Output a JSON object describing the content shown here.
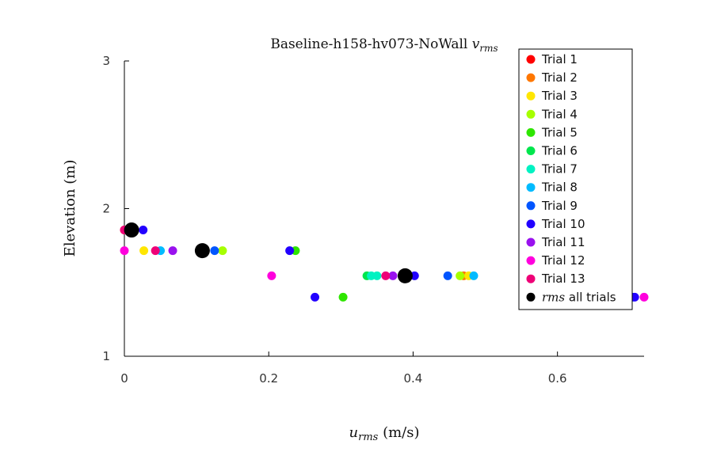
{
  "chart_data": {
    "type": "scatter",
    "title": "Baseline-h158-hv073-NoWall",
    "title_symbol": "v",
    "title_symbol_sub": "rms",
    "xlabel_symbol": "u",
    "xlabel_symbol_sub": "rms",
    "xlabel_unit": "(m/s)",
    "ylabel": "Elevation (m)",
    "xlim": [
      0,
      0.72
    ],
    "ylim": [
      1,
      3
    ],
    "x_ticks": [
      0,
      0.2,
      0.4,
      0.6
    ],
    "x_tick_labels": [
      "0",
      "0.2",
      "0.4",
      "0.6"
    ],
    "y_ticks": [
      1,
      2,
      3
    ],
    "y_tick_labels": [
      "1",
      "2",
      "3"
    ],
    "grid": false,
    "legend_position": "top-right",
    "series": [
      {
        "name": "Trial 1",
        "color": "#ff0000",
        "points": [
          [
            0.0,
            1.855
          ]
        ]
      },
      {
        "name": "Trial 2",
        "color": "#ff7700",
        "points": [
          [
            0.47,
            1.545
          ]
        ]
      },
      {
        "name": "Trial 3",
        "color": "#ffe600",
        "points": [
          [
            0.027,
            1.715
          ],
          [
            0.477,
            1.545
          ]
        ]
      },
      {
        "name": "Trial 4",
        "color": "#a6ff00",
        "points": [
          [
            0.136,
            1.715
          ],
          [
            0.465,
            1.545
          ]
        ]
      },
      {
        "name": "Trial 5",
        "color": "#2ee600",
        "points": [
          [
            0.237,
            1.715
          ],
          [
            0.303,
            1.4
          ]
        ]
      },
      {
        "name": "Trial 6",
        "color": "#00e64d",
        "points": [
          [
            0.336,
            1.545
          ]
        ]
      },
      {
        "name": "Trial 7",
        "color": "#00f2c2",
        "points": [
          [
            0.342,
            1.545
          ],
          [
            0.35,
            1.545
          ]
        ]
      },
      {
        "name": "Trial 8",
        "color": "#00bbff",
        "points": [
          [
            0.05,
            1.715
          ],
          [
            0.484,
            1.545
          ]
        ]
      },
      {
        "name": "Trial 9",
        "color": "#0055ff",
        "points": [
          [
            0.125,
            1.715
          ],
          [
            0.448,
            1.545
          ],
          [
            0.704,
            1.4
          ]
        ]
      },
      {
        "name": "Trial 10",
        "color": "#2200ff",
        "points": [
          [
            0.026,
            1.855
          ],
          [
            0.229,
            1.715
          ],
          [
            0.264,
            1.4
          ],
          [
            0.402,
            1.545
          ],
          [
            0.707,
            1.4
          ]
        ]
      },
      {
        "name": "Trial 11",
        "color": "#9911ee",
        "points": [
          [
            0.067,
            1.715
          ],
          [
            0.372,
            1.545
          ]
        ]
      },
      {
        "name": "Trial 12",
        "color": "#ff00dd",
        "points": [
          [
            0.0,
            1.715
          ],
          [
            0.204,
            1.545
          ],
          [
            0.72,
            1.4
          ]
        ]
      },
      {
        "name": "Trial 13",
        "color": "#ee0077",
        "points": [
          [
            0.0,
            1.855
          ],
          [
            0.043,
            1.715
          ],
          [
            0.362,
            1.545
          ]
        ]
      },
      {
        "name": "all trials",
        "name_prefix": "rms",
        "color": "#000000",
        "large": true,
        "points": [
          [
            0.01,
            1.855
          ],
          [
            0.108,
            1.715
          ],
          [
            0.389,
            1.545
          ]
        ]
      }
    ]
  }
}
